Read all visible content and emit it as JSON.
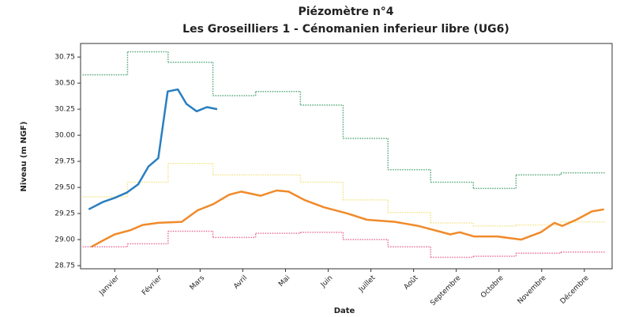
{
  "chart_data": {
    "type": "line",
    "title": "Piézomètre n°4",
    "subtitle": "Les Groseilliers 1 - Cénomanien inferieur libre (UG6)",
    "x_label": "Date",
    "y_label": "Niveau (m NGF)",
    "xlim": [
      0.2,
      12.65
    ],
    "ylim": [
      28.72,
      30.88
    ],
    "xticks": [
      {
        "value": 1,
        "label": "Janvier"
      },
      {
        "value": 2,
        "label": "Février"
      },
      {
        "value": 3,
        "label": "Mars"
      },
      {
        "value": 4,
        "label": "Avril"
      },
      {
        "value": 5,
        "label": "Mai"
      },
      {
        "value": 6,
        "label": "Juin"
      },
      {
        "value": 7,
        "label": "Juillet"
      },
      {
        "value": 8,
        "label": "Août"
      },
      {
        "value": 9,
        "label": "Septembre"
      },
      {
        "value": 10,
        "label": "Octobre"
      },
      {
        "value": 11,
        "label": "Novembre"
      },
      {
        "value": 12,
        "label": "Décembre"
      }
    ],
    "yticks": [
      28.75,
      {
        "value": 29.0,
        "label": "29.00"
      },
      29.25,
      {
        "value": 29.5,
        "label": "29.50"
      },
      29.75,
      {
        "value": 30.0,
        "label": "30.00"
      },
      30.25,
      {
        "value": 30.5,
        "label": "30.50"
      },
      30.75
    ],
    "series": [
      {
        "color": "#5aa97c",
        "style": "step",
        "x": [
          0.25,
          1.3,
          2.25,
          3.3,
          4.3,
          5.35,
          6.35,
          7.4,
          8.4,
          9.4,
          10.4,
          11.45
        ],
        "values": [
          30.58,
          30.8,
          30.7,
          30.38,
          30.42,
          30.29,
          29.97,
          29.67,
          29.55,
          29.49,
          29.62,
          29.64
        ]
      },
      {
        "color": "#f3e58a",
        "style": "step",
        "x": [
          0.25,
          1.3,
          2.25,
          3.3,
          4.3,
          5.35,
          6.35,
          7.4,
          8.4,
          9.4,
          10.4,
          11.45
        ],
        "values": [
          29.41,
          29.55,
          29.73,
          29.62,
          29.62,
          29.55,
          29.38,
          29.26,
          29.16,
          29.13,
          29.14,
          29.17
        ]
      },
      {
        "color": "#e8739c",
        "style": "step",
        "x": [
          0.25,
          1.3,
          2.25,
          3.3,
          4.3,
          5.35,
          6.35,
          7.4,
          8.4,
          9.4,
          10.4,
          11.45
        ],
        "values": [
          28.93,
          28.96,
          29.08,
          29.02,
          29.06,
          29.07,
          29.0,
          28.93,
          28.83,
          28.84,
          28.87,
          28.88
        ]
      },
      {
        "color": "#f08a2a",
        "style": "line",
        "x": [
          0.45,
          0.72,
          1,
          1.37,
          1.65,
          2.02,
          2.57,
          2.94,
          3.31,
          3.68,
          3.96,
          4.42,
          4.79,
          5.07,
          5.44,
          5.9,
          6.45,
          6.91,
          7.56,
          8.12,
          8.58,
          8.86,
          9.08,
          9.41,
          9.96,
          10.52,
          10.98,
          11.3,
          11.48,
          11.81,
          12.18,
          12.46
        ],
        "values": [
          28.93,
          28.99,
          29.05,
          29.09,
          29.14,
          29.16,
          29.17,
          29.28,
          29.34,
          29.43,
          29.46,
          29.42,
          29.47,
          29.46,
          29.38,
          29.31,
          29.25,
          29.19,
          29.17,
          29.13,
          29.08,
          29.05,
          29.07,
          29.03,
          29.03,
          29.0,
          29.07,
          29.16,
          29.13,
          29.19,
          29.27,
          29.29
        ]
      },
      {
        "color": "#2a7fc0",
        "style": "line",
        "x": [
          0.39,
          0.72,
          1,
          1.28,
          1.55,
          1.79,
          2.02,
          2.24,
          2.48,
          2.68,
          2.92,
          3.16,
          3.4
        ],
        "values": [
          29.29,
          29.36,
          29.4,
          29.45,
          29.53,
          29.7,
          29.78,
          30.42,
          30.44,
          30.3,
          30.23,
          30.27,
          30.25
        ]
      }
    ]
  }
}
